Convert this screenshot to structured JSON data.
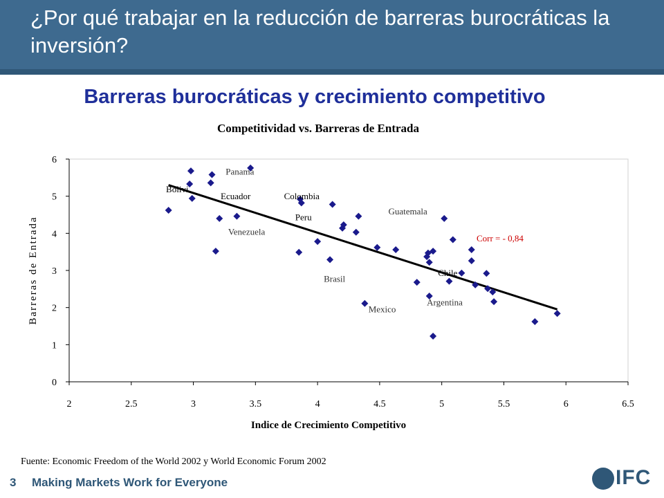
{
  "slide": {
    "title": "¿Por qué trabajar en la reducción de barreras burocráticas la inversión?",
    "subtitle": "Barreras burocráticas y crecimiento competitivo",
    "source_note": "Fuente: Economic Freedom of the World 2002 y World Economic Forum 2002",
    "footer_number": "3",
    "footer_text": "Making Markets Work for Everyone",
    "logo_text": "IFC"
  },
  "chart_data": {
    "type": "scatter",
    "title": "Competitividad vs. Barreras de Entrada",
    "xlabel": "Indice de Crecimiento Competitivo",
    "ylabel": "Barreras de Entrada",
    "xlim": [
      2,
      6.5
    ],
    "ylim": [
      0,
      6
    ],
    "x_ticks": [
      "2",
      "2.5",
      "3",
      "3.5",
      "4",
      "4.5",
      "5",
      "5.5",
      "6",
      "6.5"
    ],
    "y_ticks": [
      "0",
      "1",
      "2",
      "3",
      "4",
      "5",
      "6"
    ],
    "marker_color": "#1a1a8c",
    "points": [
      {
        "x": 2.8,
        "y": 4.62
      },
      {
        "x": 2.97,
        "y": 5.33
      },
      {
        "x": 2.98,
        "y": 5.68
      },
      {
        "x": 2.99,
        "y": 4.94
      },
      {
        "x": 3.14,
        "y": 5.36
      },
      {
        "x": 3.15,
        "y": 5.58
      },
      {
        "x": 3.18,
        "y": 3.52
      },
      {
        "x": 3.21,
        "y": 4.4
      },
      {
        "x": 3.35,
        "y": 4.46
      },
      {
        "x": 3.46,
        "y": 5.76
      },
      {
        "x": 3.85,
        "y": 3.49
      },
      {
        "x": 3.86,
        "y": 4.92
      },
      {
        "x": 3.87,
        "y": 4.82
      },
      {
        "x": 4.0,
        "y": 3.78
      },
      {
        "x": 4.1,
        "y": 3.29
      },
      {
        "x": 4.12,
        "y": 4.78
      },
      {
        "x": 4.2,
        "y": 4.14
      },
      {
        "x": 4.21,
        "y": 4.23
      },
      {
        "x": 4.31,
        "y": 4.03
      },
      {
        "x": 4.33,
        "y": 4.46
      },
      {
        "x": 4.38,
        "y": 2.11
      },
      {
        "x": 4.48,
        "y": 3.62
      },
      {
        "x": 4.63,
        "y": 3.56
      },
      {
        "x": 4.8,
        "y": 2.68
      },
      {
        "x": 4.88,
        "y": 3.37
      },
      {
        "x": 4.89,
        "y": 3.47
      },
      {
        "x": 4.9,
        "y": 3.22
      },
      {
        "x": 4.9,
        "y": 2.31
      },
      {
        "x": 4.93,
        "y": 3.52
      },
      {
        "x": 4.93,
        "y": 1.23
      },
      {
        "x": 5.02,
        "y": 4.4
      },
      {
        "x": 5.06,
        "y": 2.71
      },
      {
        "x": 5.09,
        "y": 3.83
      },
      {
        "x": 5.16,
        "y": 2.93
      },
      {
        "x": 5.24,
        "y": 3.26
      },
      {
        "x": 5.24,
        "y": 3.56
      },
      {
        "x": 5.27,
        "y": 2.61
      },
      {
        "x": 5.36,
        "y": 2.92
      },
      {
        "x": 5.37,
        "y": 2.51
      },
      {
        "x": 5.41,
        "y": 2.42
      },
      {
        "x": 5.42,
        "y": 2.16
      },
      {
        "x": 5.75,
        "y": 1.62
      },
      {
        "x": 5.93,
        "y": 1.84
      }
    ],
    "trendline": {
      "x": [
        2.8,
        5.93
      ],
      "y": [
        5.3,
        1.95
      ]
    },
    "annotations": [
      {
        "text": "Panama",
        "x": 3.26,
        "y": 5.58,
        "color": "#333333"
      },
      {
        "text": "Bolivi",
        "x": 2.78,
        "y": 5.11,
        "color": "#000000"
      },
      {
        "text": "Ecuador",
        "x": 3.22,
        "y": 4.92,
        "color": "#000000"
      },
      {
        "text": "Colombia",
        "x": 3.73,
        "y": 4.92,
        "color": "#000000"
      },
      {
        "text": "Guatemala",
        "x": 4.57,
        "y": 4.51,
        "color": "#333333"
      },
      {
        "text": "Peru",
        "x": 3.82,
        "y": 4.35,
        "color": "#000000"
      },
      {
        "text": "Venezuela",
        "x": 3.28,
        "y": 3.96,
        "color": "#333333"
      },
      {
        "text": "Corr = - 0,84",
        "x": 5.28,
        "y": 3.78,
        "color": "#cc0000"
      },
      {
        "text": "Chile",
        "x": 4.97,
        "y": 2.85,
        "color": "#000000"
      },
      {
        "text": "Brasil",
        "x": 4.05,
        "y": 2.69,
        "color": "#333333"
      },
      {
        "text": "Argentina",
        "x": 4.88,
        "y": 2.06,
        "color": "#333333"
      },
      {
        "text": "Mexico",
        "x": 4.41,
        "y": 1.87,
        "color": "#333333"
      }
    ]
  }
}
